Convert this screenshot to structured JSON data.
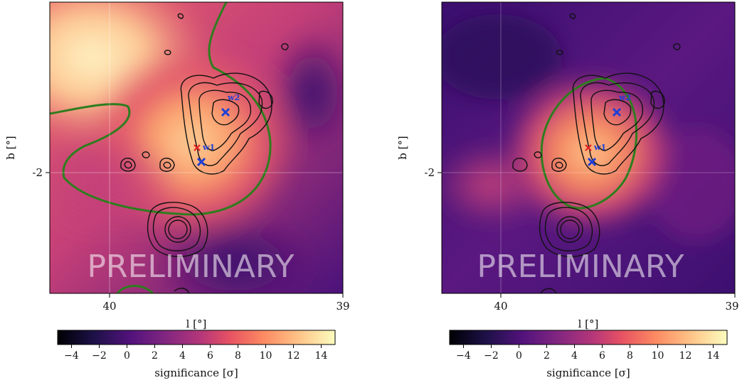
{
  "chart_data": [
    {
      "type": "heatmap",
      "title": "",
      "xlabel": "l [°]",
      "ylabel": "b [°]",
      "x_ticks": [
        40,
        39
      ],
      "y_ticks": [
        -2
      ],
      "xlim": [
        40.2,
        39.0
      ],
      "ylim": [
        -2.5,
        -1.0
      ],
      "gridlines": {
        "x": [
          40
        ],
        "y": [
          -2
        ]
      },
      "colormap": "magma",
      "colorbar": {
        "label": "significance [σ]",
        "range": [
          -5,
          15
        ],
        "ticks": [
          -4,
          -2,
          0,
          2,
          4,
          6,
          8,
          10,
          12,
          14
        ]
      },
      "watermark": "PRELIMINARY",
      "sources": [
        {
          "name": "w1",
          "red_marker": [
            39.56,
            -1.92
          ],
          "blue_marker": [
            39.54,
            -1.99
          ]
        },
        {
          "name": "w2",
          "blue_marker": [
            39.43,
            -1.75
          ]
        }
      ],
      "contour_level_color": "#2e7d1e"
    },
    {
      "type": "heatmap",
      "title": "",
      "xlabel": "l [°]",
      "ylabel": "b [°]",
      "x_ticks": [
        40,
        39
      ],
      "y_ticks": [
        -2
      ],
      "xlim": [
        40.3,
        39.0
      ],
      "ylim": [
        -2.5,
        -1.0
      ],
      "gridlines": {
        "x": [
          40
        ],
        "y": [
          -2
        ]
      },
      "colormap": "magma",
      "colorbar": {
        "label": "significance [σ]",
        "range": [
          -5,
          15
        ],
        "ticks": [
          -4,
          -2,
          0,
          2,
          4,
          6,
          8,
          10,
          12,
          14
        ]
      },
      "watermark": "PRELIMINARY",
      "sources": [
        {
          "name": "w1",
          "red_marker": [
            39.67,
            -1.92
          ],
          "blue_marker": [
            39.65,
            -1.99
          ]
        },
        {
          "name": "w2",
          "blue_marker": [
            39.52,
            -1.75
          ]
        }
      ],
      "contour_level_color": "#2e7d1e"
    }
  ]
}
